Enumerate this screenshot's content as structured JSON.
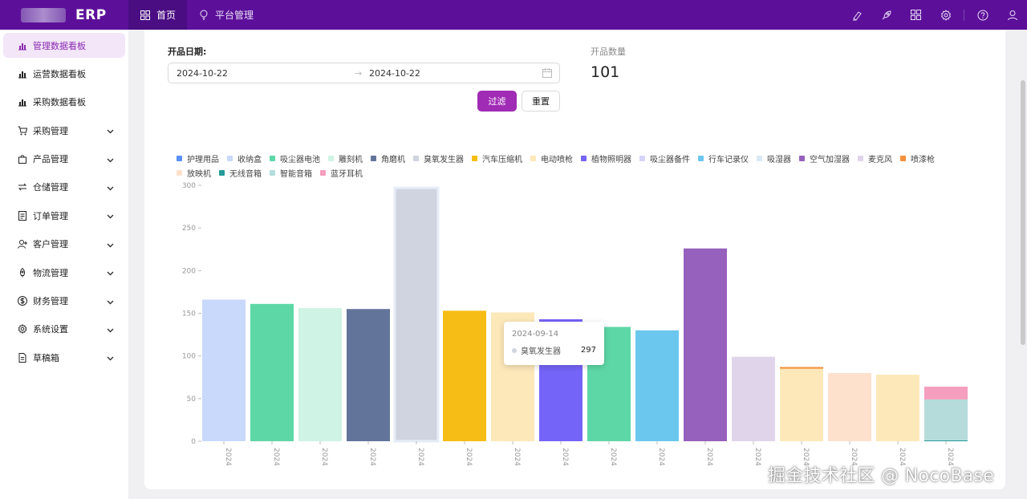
{
  "app": {
    "logo_text": "ERP"
  },
  "topnav": [
    {
      "label": "首页",
      "icon": "dashboard-icon",
      "active": true
    },
    {
      "label": "平台管理",
      "icon": "bulb-icon",
      "active": false
    }
  ],
  "top_icons": [
    "highlight-icon",
    "rocket-icon",
    "apps-icon",
    "setting-icon",
    "help-icon",
    "user-icon"
  ],
  "sidebar": {
    "items": [
      {
        "label": "管理数据看板",
        "icon": "bar-chart-icon",
        "active": true,
        "has_children": false
      },
      {
        "label": "运营数据看板",
        "icon": "bar-chart-icon",
        "active": false,
        "has_children": false
      },
      {
        "label": "采购数据看板",
        "icon": "bar-chart-icon",
        "active": false,
        "has_children": false
      },
      {
        "label": "采购管理",
        "icon": "cart-icon",
        "active": false,
        "has_children": true
      },
      {
        "label": "产品管理",
        "icon": "shopping-icon",
        "active": false,
        "has_children": true
      },
      {
        "label": "仓储管理",
        "icon": "swap-icon",
        "active": false,
        "has_children": true
      },
      {
        "label": "订单管理",
        "icon": "order-icon",
        "active": false,
        "has_children": true
      },
      {
        "label": "客户管理",
        "icon": "user-add-icon",
        "active": false,
        "has_children": true
      },
      {
        "label": "物流管理",
        "icon": "rocket-icon",
        "active": false,
        "has_children": true
      },
      {
        "label": "财务管理",
        "icon": "dollar-icon",
        "active": false,
        "has_children": true
      },
      {
        "label": "系统设置",
        "icon": "setting-icon",
        "active": false,
        "has_children": true
      },
      {
        "label": "草稿箱",
        "icon": "file-icon",
        "active": false,
        "has_children": true
      }
    ]
  },
  "filter": {
    "label": "开品日期:",
    "start_date": "2024-10-22",
    "end_date": "2024-10-22",
    "arrow": "→",
    "filter_button": "过滤",
    "reset_button": "重置"
  },
  "stat": {
    "label": "开品数量",
    "value": "101"
  },
  "colors": {
    "brand": "#5c109a",
    "primary_button": "#a02bb5",
    "active_menu_bg": "#f2e6f8"
  },
  "chart_data": {
    "type": "bar",
    "stacked": true,
    "ylim": [
      0,
      300
    ],
    "yticks": [
      0,
      50,
      100,
      150,
      200,
      250,
      300
    ],
    "categories": [
      "2024",
      "2024",
      "2024",
      "2024",
      "2024",
      "2024",
      "2024",
      "2024",
      "2024",
      "2024",
      "2024",
      "2024",
      "2024",
      "2024",
      "2024",
      "2024"
    ],
    "legend_position": "top",
    "series": [
      {
        "name": "护理用品",
        "color": "#5b8ff9",
        "values": [
          0,
          0,
          0,
          0,
          0,
          0,
          0,
          0,
          0,
          0,
          0,
          0,
          0,
          0,
          0,
          0
        ]
      },
      {
        "name": "收纳盒",
        "color": "#c9d9fb",
        "values": [
          166,
          0,
          0,
          0,
          0,
          0,
          0,
          0,
          0,
          0,
          0,
          0,
          0,
          0,
          0,
          0
        ]
      },
      {
        "name": "吸尘器电池",
        "color": "#5ed7a6",
        "values": [
          0,
          161,
          0,
          0,
          0,
          0,
          0,
          0,
          134,
          0,
          0,
          0,
          0,
          0,
          0,
          0
        ]
      },
      {
        "name": "雕刻机",
        "color": "#cff3e4",
        "values": [
          0,
          0,
          156,
          0,
          0,
          0,
          0,
          0,
          0,
          0,
          0,
          0,
          0,
          0,
          0,
          0
        ]
      },
      {
        "name": "角磨机",
        "color": "#63749a",
        "values": [
          0,
          0,
          0,
          155,
          0,
          0,
          0,
          0,
          0,
          0,
          0,
          0,
          0,
          0,
          0,
          0
        ]
      },
      {
        "name": "臭氧发生器",
        "color": "#d0d4e0",
        "values": [
          0,
          0,
          0,
          0,
          297,
          0,
          0,
          0,
          0,
          0,
          0,
          0,
          0,
          0,
          0,
          0
        ]
      },
      {
        "name": "汽车压缩机",
        "color": "#f6bd16",
        "values": [
          0,
          0,
          0,
          0,
          0,
          153,
          0,
          0,
          0,
          0,
          0,
          0,
          0,
          0,
          0,
          0
        ]
      },
      {
        "name": "电动喷枪",
        "color": "#fce8b9",
        "values": [
          0,
          0,
          0,
          0,
          0,
          0,
          151,
          0,
          0,
          0,
          0,
          0,
          85,
          0,
          78,
          0
        ]
      },
      {
        "name": "植物照明器",
        "color": "#7564f8",
        "values": [
          0,
          0,
          0,
          0,
          0,
          0,
          0,
          143,
          0,
          0,
          0,
          0,
          0,
          0,
          0,
          0
        ]
      },
      {
        "name": "吸尘器备件",
        "color": "#d6d4f7",
        "values": [
          0,
          0,
          0,
          0,
          0,
          0,
          0,
          0,
          0,
          0,
          0,
          0,
          0,
          0,
          0,
          0
        ]
      },
      {
        "name": "行车记录仪",
        "color": "#6cc7ee",
        "values": [
          0,
          0,
          0,
          0,
          0,
          0,
          0,
          0,
          0,
          130,
          0,
          0,
          0,
          0,
          0,
          0
        ]
      },
      {
        "name": "吸湿器",
        "color": "#d9e8f5",
        "values": [
          0,
          0,
          0,
          0,
          0,
          0,
          0,
          0,
          0,
          0,
          0,
          0,
          0,
          0,
          0,
          0
        ]
      },
      {
        "name": "空气加湿器",
        "color": "#9661bc",
        "values": [
          0,
          0,
          0,
          0,
          0,
          0,
          0,
          0,
          0,
          0,
          226,
          0,
          0,
          0,
          0,
          0
        ]
      },
      {
        "name": "麦克风",
        "color": "#e0d4ea",
        "values": [
          0,
          0,
          0,
          0,
          0,
          0,
          0,
          0,
          0,
          0,
          0,
          99,
          0,
          0,
          0,
          0
        ]
      },
      {
        "name": "喷漆枪",
        "color": "#f6903d",
        "values": [
          0,
          0,
          0,
          0,
          0,
          0,
          0,
          0,
          0,
          0,
          0,
          0,
          2,
          0,
          0,
          0
        ]
      },
      {
        "name": "放映机",
        "color": "#fde1cc",
        "values": [
          0,
          0,
          0,
          0,
          0,
          0,
          0,
          0,
          0,
          0,
          0,
          0,
          0,
          80,
          0,
          0
        ]
      },
      {
        "name": "无线音箱",
        "color": "#269a99",
        "values": [
          0,
          0,
          0,
          0,
          0,
          0,
          0,
          0,
          0,
          0,
          0,
          0,
          0,
          0,
          0,
          1
        ]
      },
      {
        "name": "智能音箱",
        "color": "#b5dcdb",
        "values": [
          0,
          0,
          0,
          0,
          0,
          0,
          0,
          0,
          0,
          0,
          0,
          0,
          0,
          0,
          0,
          48
        ]
      },
      {
        "name": "蓝牙耳机",
        "color": "#f59ebd",
        "values": [
          0,
          0,
          0,
          0,
          0,
          0,
          0,
          0,
          0,
          0,
          0,
          0,
          0,
          0,
          0,
          15
        ]
      }
    ],
    "tooltip": {
      "date": "2024-09-14",
      "series": "臭氧发生器",
      "value": "297"
    }
  },
  "watermark": "掘金技术社区 @ NocoBase"
}
